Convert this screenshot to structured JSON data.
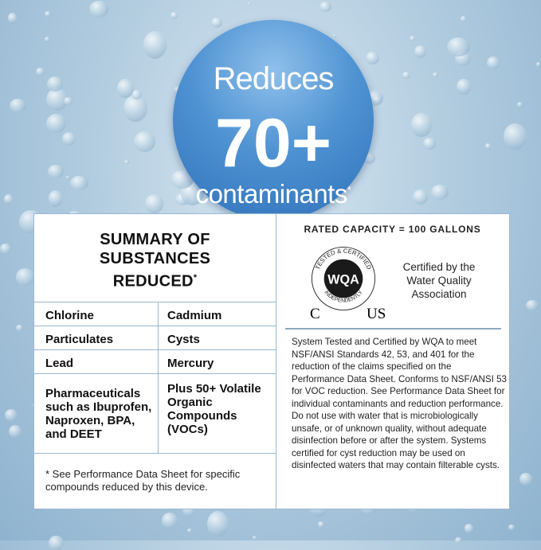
{
  "badge": {
    "line1": "Reduces",
    "line2": "70+",
    "line3": "contaminants",
    "asterisk": "*",
    "color": "#4f93d3"
  },
  "summary": {
    "title_lines": [
      "SUMMARY OF",
      "SUBSTANCES",
      "REDUCED"
    ],
    "asterisk": "*",
    "rows": [
      [
        "Chlorine",
        "Cadmium"
      ],
      [
        "Particulates",
        "Cysts"
      ],
      [
        "Lead",
        "Mercury"
      ],
      [
        "Pharmaceuticals such as Ibuprofen, Naproxen, BPA, and DEET",
        "Plus 50+ Volatile Organic Compounds (VOCs)"
      ]
    ],
    "footnote": "* See Performance Data Sheet for specific compounds reduced by this device."
  },
  "certification": {
    "capacity": "RATED CAPACITY = 100 GALLONS",
    "seal": {
      "top_text": "TESTED & CERTIFIED",
      "center": "WQA",
      "bottom_text": "INDEPENDENTLY",
      "left": "C",
      "right": "US"
    },
    "certified_by": "Certified by the Water Quality Association",
    "body": "System Tested and Certified by WQA to meet NSF/ANSI Standards 42, 53, and 401 for the reduction of the claims specified on the Performance Data Sheet. Conforms to NSF/ANSI 53 for VOC reduction. See Performance Data Sheet for individual contaminants and reduction performance. Do not use with water that is microbiologically unsafe, or of unknown quality, without adequate disinfection before or after the system. Systems certified for cyst reduction may be used on disinfected waters that may contain filterable cysts."
  }
}
